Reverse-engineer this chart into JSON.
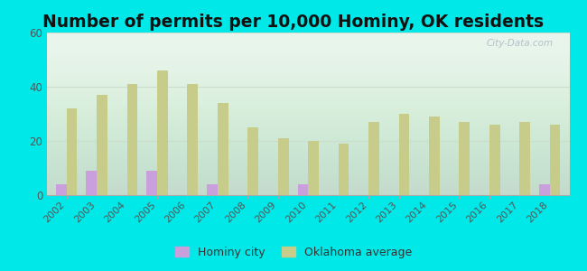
{
  "title": "Number of permits per 10,000 Hominy, OK residents",
  "years": [
    2002,
    2003,
    2004,
    2005,
    2006,
    2007,
    2008,
    2009,
    2010,
    2011,
    2012,
    2013,
    2014,
    2015,
    2016,
    2017,
    2018
  ],
  "hominy_values": [
    4,
    9,
    0,
    9,
    0,
    4,
    0,
    0,
    4,
    0,
    0,
    0,
    0,
    0,
    0,
    0,
    4
  ],
  "oklahoma_values": [
    32,
    37,
    41,
    46,
    41,
    34,
    25,
    21,
    20,
    19,
    27,
    30,
    29,
    27,
    26,
    27,
    26
  ],
  "hominy_color": "#c9a0dc",
  "oklahoma_color": "#c8cc8a",
  "background_color": "#00e8e8",
  "plot_bg_color": "#e8f5ec",
  "ylim": [
    0,
    60
  ],
  "yticks": [
    0,
    20,
    40,
    60
  ],
  "bar_width": 0.35,
  "title_fontsize": 13.5,
  "legend_hominy": "Hominy city",
  "legend_oklahoma": "Oklahoma average",
  "watermark": "City-Data.com"
}
